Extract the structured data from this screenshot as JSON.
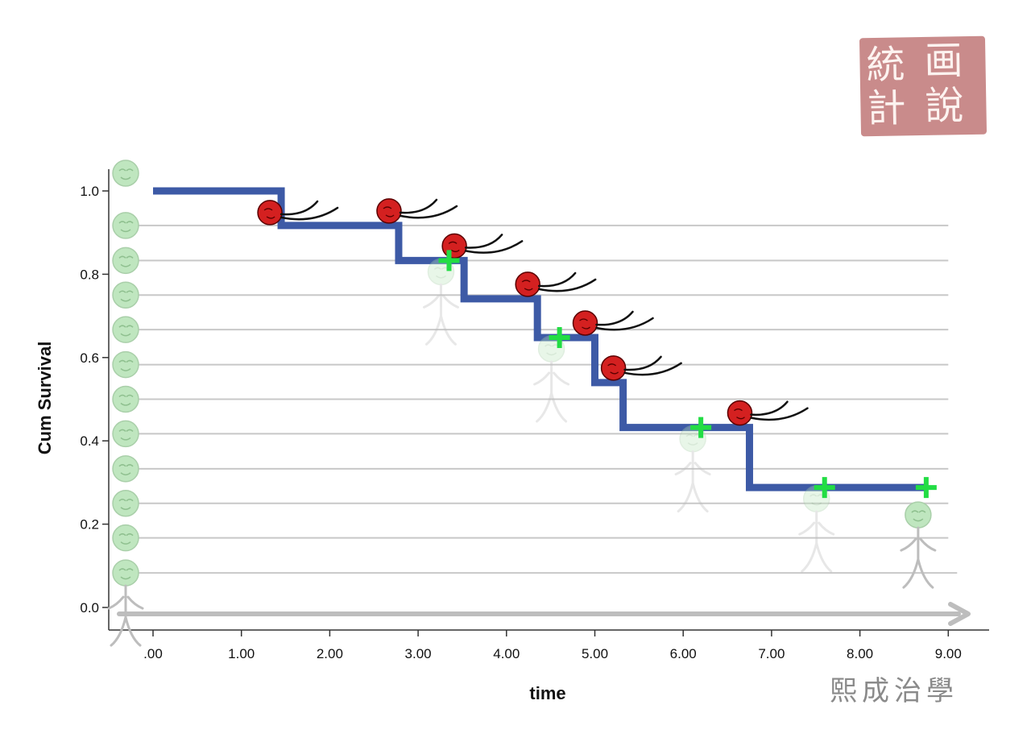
{
  "chart_data": {
    "type": "line",
    "subtype": "kaplan-meier step curve",
    "title": "",
    "xlabel": "time",
    "ylabel": "Cum Survival",
    "xlim": [
      -0.5,
      9.5
    ],
    "ylim": [
      0,
      1.0
    ],
    "x_ticks": [
      0,
      1,
      2,
      3,
      4,
      5,
      6,
      7,
      8,
      9
    ],
    "x_tick_labels": [
      ".00",
      "1.00",
      "2.00",
      "3.00",
      "4.00",
      "5.00",
      "6.00",
      "7.00",
      "8.00",
      "9.00"
    ],
    "y_ticks": [
      0,
      0.2,
      0.4,
      0.6,
      0.8,
      1.0
    ],
    "y_tick_labels": [
      "0.0",
      "0.2",
      "0.4",
      "0.6",
      "0.8",
      "1.0"
    ],
    "series": [
      {
        "name": "Survival",
        "color": "#3d5aa6",
        "start_x": 0.0,
        "end_x": 8.75,
        "step_x": [
          0.0,
          1.45,
          2.78,
          3.52,
          4.35,
          5.0,
          5.32,
          6.75
        ],
        "step_y": [
          1.0,
          0.917,
          0.833,
          0.741,
          0.648,
          0.54,
          0.432,
          0.288
        ],
        "censored": [
          {
            "x": 3.35,
            "y": 0.833
          },
          {
            "x": 4.6,
            "y": 0.648
          },
          {
            "x": 6.2,
            "y": 0.432
          },
          {
            "x": 7.6,
            "y": 0.288
          },
          {
            "x": 8.75,
            "y": 0.288
          }
        ]
      }
    ],
    "event_times": [
      1.45,
      2.78,
      3.52,
      4.35,
      5.0,
      5.32,
      6.75
    ],
    "subject_levels": [
      0.917,
      0.833,
      0.75,
      0.667,
      0.583,
      0.5,
      0.417,
      0.333,
      0.25,
      0.167,
      0.083
    ],
    "subjects_at_start": 12,
    "colors": {
      "curve": "#3d5aa6",
      "censor_mark": "#22dd44",
      "event_marker": "#d42020",
      "subject": "#bfe6bf",
      "guide_line": "#c8c8c8",
      "time_arrow": "#bdbdbd",
      "seal": "#c98b8b"
    }
  },
  "decorations": {
    "seal_chars": [
      "統",
      "画",
      "計",
      "說"
    ],
    "watermark_text": "熙成治學"
  }
}
